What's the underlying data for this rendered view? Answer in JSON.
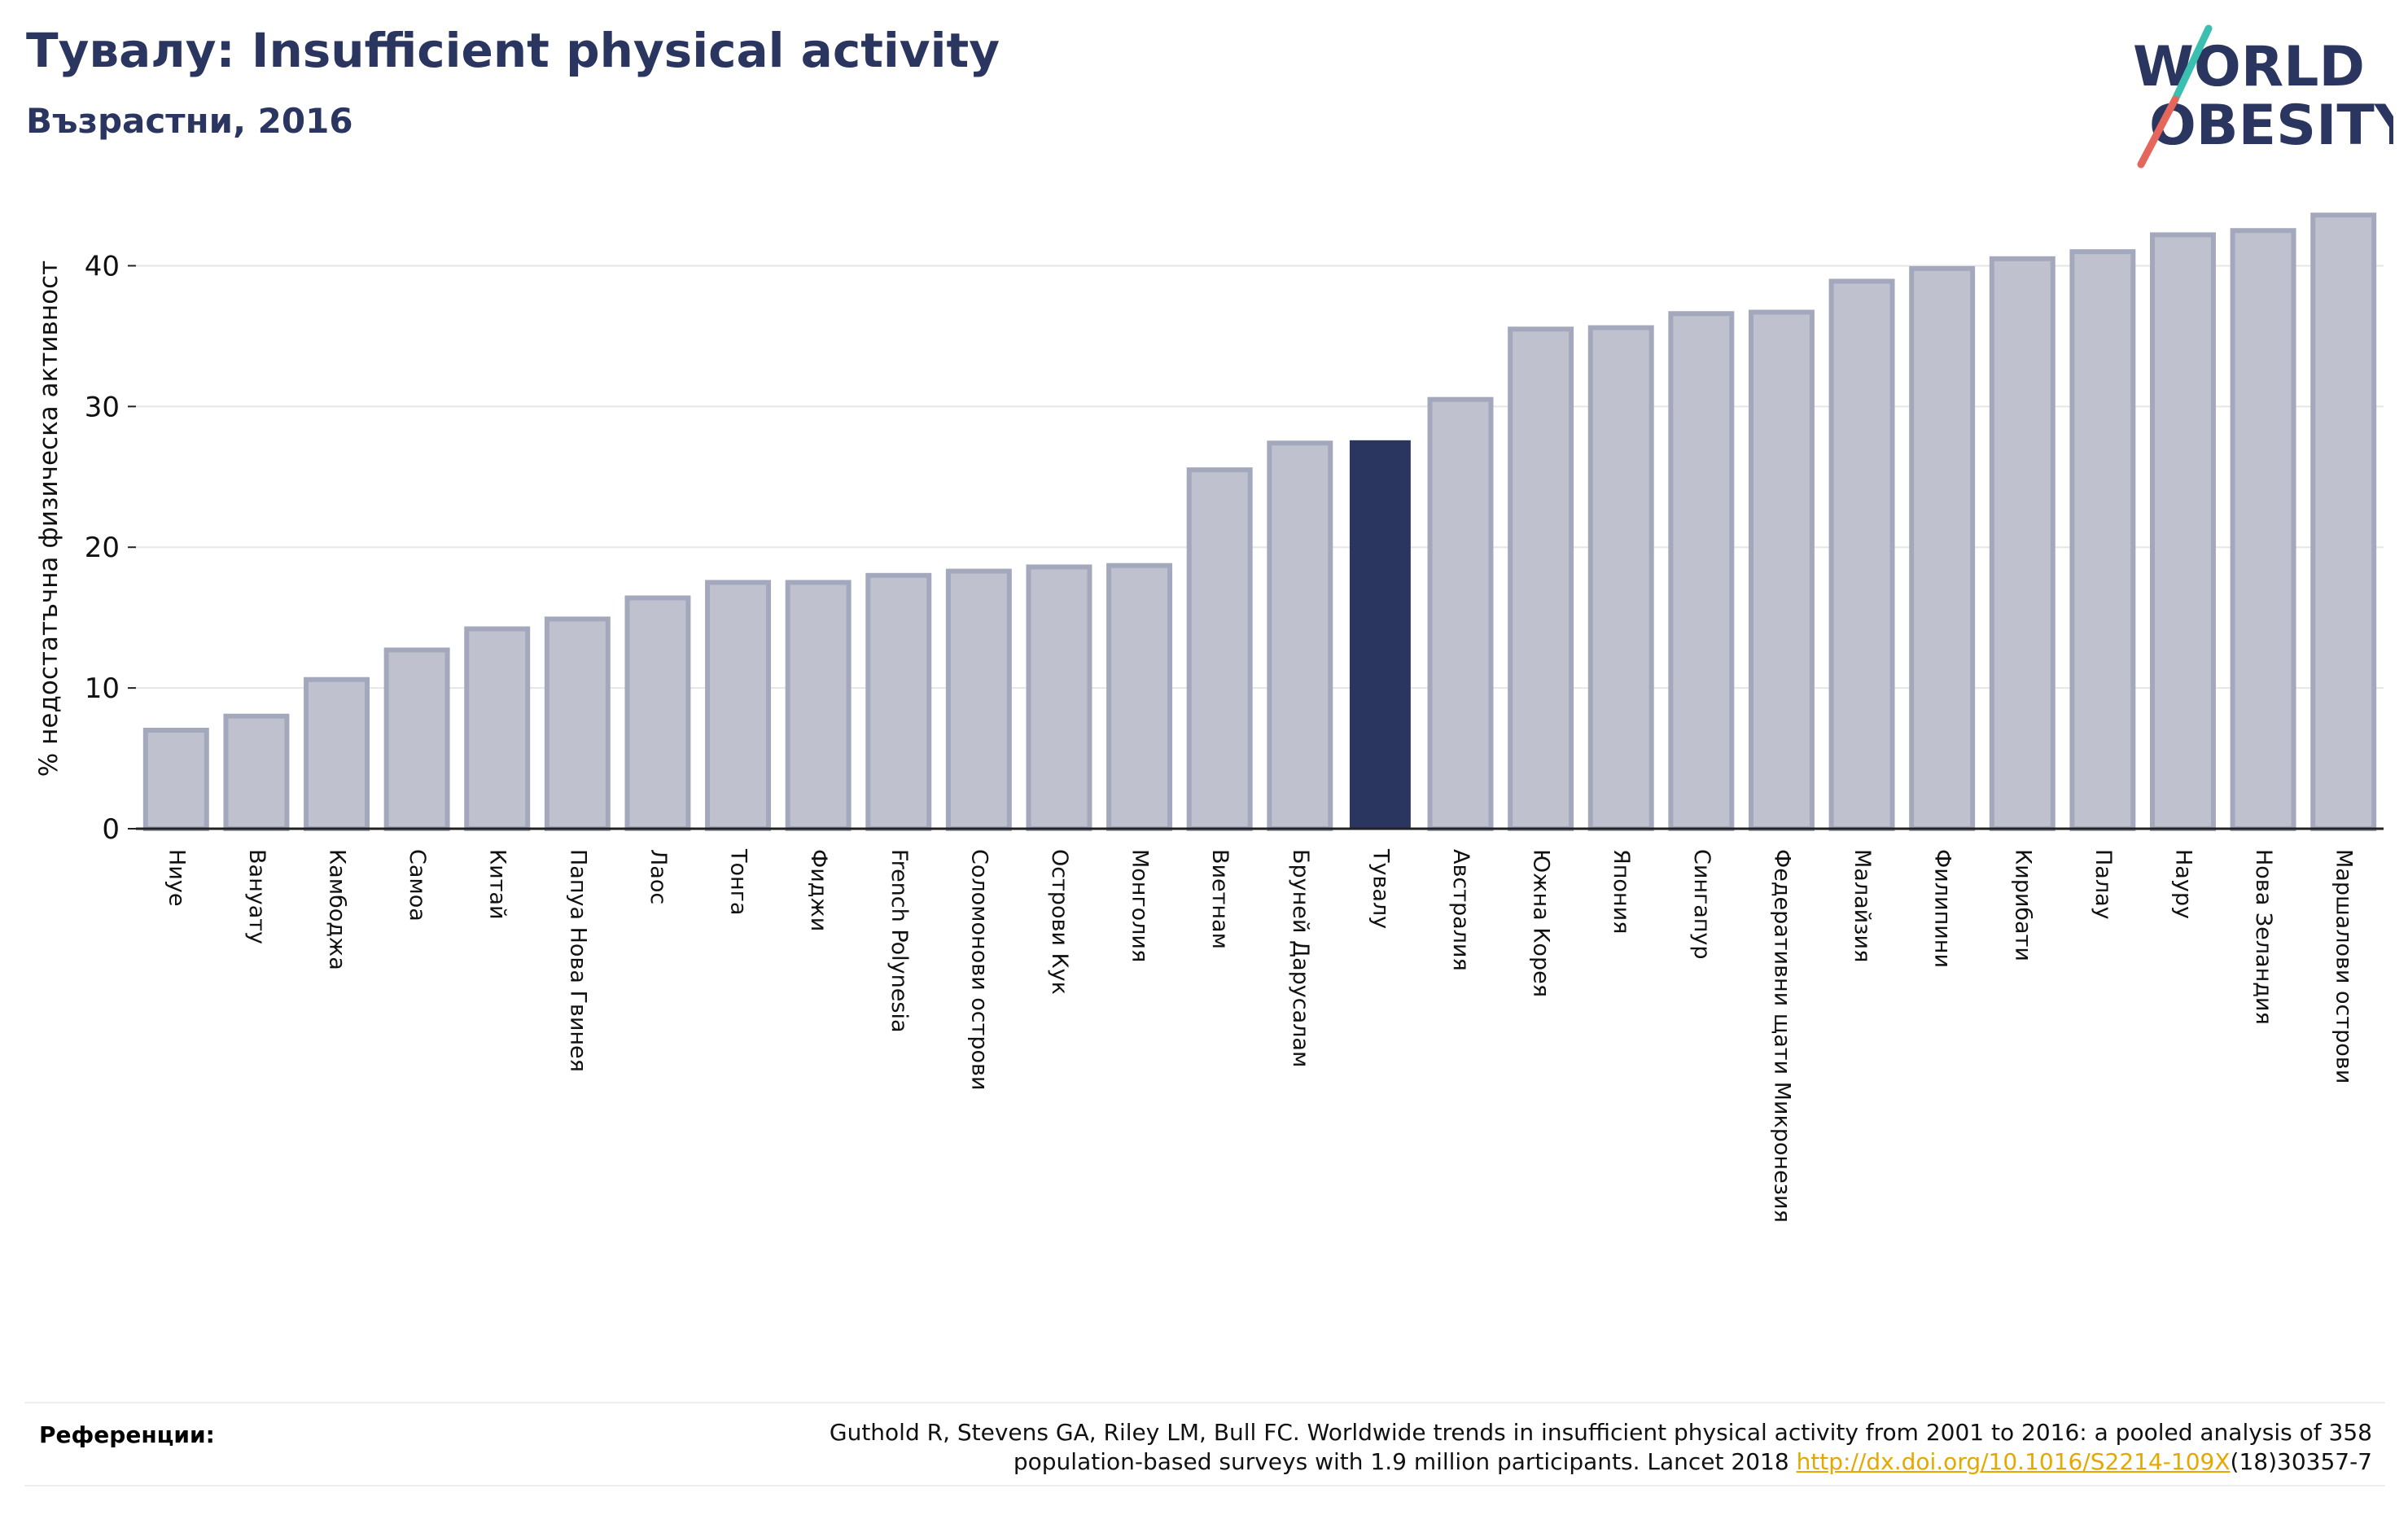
{
  "header": {
    "title": "Тувалу: Insufficient physical activity",
    "subtitle": "Възрастни, 2016"
  },
  "logo": {
    "line1": "WORLD",
    "line2": "OBESITY",
    "colors": {
      "text": "#2b3660",
      "teal": "#3bbfb0",
      "coral": "#e5665a"
    }
  },
  "chart_data": {
    "type": "bar",
    "ylabel": "% недостатъчна физическа активност",
    "ylim": [
      0,
      45
    ],
    "yticks": [
      0,
      10,
      20,
      30,
      40
    ],
    "grid": true,
    "highlight": "Тувалу",
    "colors": {
      "bar": "#bfc2ce",
      "bar_border": "#a3a8bd",
      "highlight": "#2b3660",
      "axis": "#222222",
      "grid": "#e6e6e6"
    },
    "categories": [
      "Ниуе",
      "Вануату",
      "Камбоджа",
      "Самоа",
      "Китай",
      "Папуа Нова Гвинея",
      "Лаос",
      "Тонга",
      "Фиджи",
      "French Polynesia",
      "Соломонови острови",
      "Острови Кук",
      "Монголия",
      "Виетнам",
      "Бруней Дарусалам",
      "Тувалу",
      "Австралия",
      "Южна Корея",
      "Япония",
      "Сингапур",
      "Федеративни щати Микронезия",
      "Малайзия",
      "Филипини",
      "Кирибати",
      "Палау",
      "Науру",
      "Нова Зеландия",
      "Маршалови острови"
    ],
    "values": [
      7.0,
      8.0,
      10.6,
      12.7,
      14.2,
      14.9,
      16.4,
      17.5,
      17.5,
      18.0,
      18.3,
      18.6,
      18.7,
      25.5,
      27.4,
      27.6,
      30.5,
      35.5,
      35.6,
      36.6,
      36.7,
      38.9,
      39.8,
      40.5,
      41.0,
      42.2,
      42.5,
      43.6
    ]
  },
  "references": {
    "label": "Референции:",
    "text_line1": "Guthold R, Stevens GA, Riley LM, Bull FC. Worldwide trends in insufficient physical activity from 2001 to 2016: a pooled analysis of 358",
    "text_line2_pre": "population-based surveys with 1.9 million participants. Lancet 2018 ",
    "link": "http://dx.doi.org/10.1016/S2214-109X",
    "text_line2_post": "(18)30357-7"
  }
}
